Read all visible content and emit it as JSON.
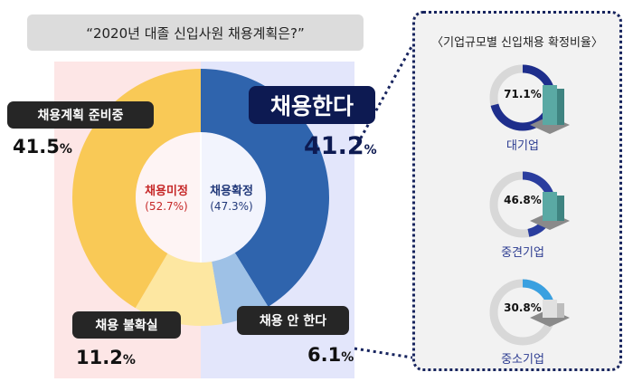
{
  "header": {
    "title": "“2020년 대졸 신입사원 채용계획은?”"
  },
  "chart_data": [
    {
      "type": "pie",
      "slices": [
        {
          "name": "채용한다",
          "value": 41.2,
          "color": "#2f64ad"
        },
        {
          "name": "채용 안 한다",
          "value": 6.1,
          "color": "#9ec1e6"
        },
        {
          "name": "채용 불확실",
          "value": 11.2,
          "color": "#fde7a1"
        },
        {
          "name": "채용계획 준비중",
          "value": 41.5,
          "color": "#f9c956"
        }
      ],
      "groups": [
        {
          "name": "채용확정",
          "value_label": "(47.3%)",
          "value": 47.3
        },
        {
          "name": "채용미정",
          "value_label": "(52.7%)",
          "value": 52.7
        }
      ],
      "labels": {
        "hire": {
          "name": "채용한다",
          "value": "41.2",
          "unit": "%"
        },
        "no_hire": {
          "name": "채용 안 한다",
          "value": "6.1",
          "unit": "%"
        },
        "uncertain": {
          "name": "채용 불확실",
          "value": "11.2",
          "unit": "%"
        },
        "preparing": {
          "name": "채용계획 준비중",
          "value": "41.5",
          "unit": "%"
        }
      }
    },
    {
      "type": "pie",
      "title": "〈기업규모별 신입채용 확정비율〉",
      "items": [
        {
          "name": "대기업",
          "value": 71.1,
          "value_label": "71.1%",
          "color": "#1e2e8c"
        },
        {
          "name": "중견기업",
          "value": 46.8,
          "value_label": "46.8%",
          "color": "#2a3d9e"
        },
        {
          "name": "중소기업",
          "value": 30.8,
          "value_label": "30.8%",
          "color": "#3aa0e0"
        }
      ],
      "track_color": "#d8d8d8"
    }
  ]
}
